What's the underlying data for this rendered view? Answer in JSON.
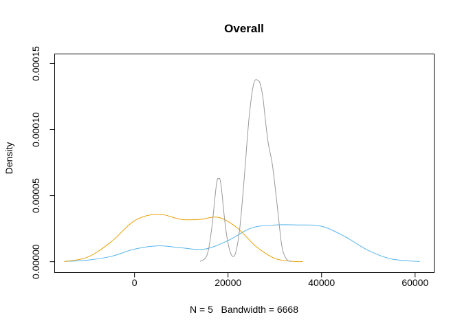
{
  "chart_data": {
    "type": "line",
    "title": "Overall",
    "xlabel": "N = 5   Bandwidth = 6668",
    "ylabel": "Density",
    "xlim": [
      -17000,
      64000
    ],
    "ylim": [
      -8e-06,
      0.000157
    ],
    "x_ticks": [
      0,
      20000,
      40000,
      60000
    ],
    "x_tick_labels": [
      "0",
      "20000",
      "40000",
      "60000"
    ],
    "y_ticks": [
      0,
      5e-05,
      0.0001,
      0.00015
    ],
    "y_tick_labels": [
      "0.00000",
      "0.00005",
      "0.00010",
      "0.00015"
    ],
    "grid": false,
    "series": [
      {
        "color": "#56B4E9",
        "x": [
          -15000,
          -10000,
          -5000,
          0,
          5000,
          10000,
          15000,
          20000,
          25000,
          30000,
          35000,
          40000,
          45000,
          50000,
          55000,
          61000
        ],
        "y": [
          2e-07,
          1.2e-06,
          4e-06,
          9.5e-06,
          1.2e-05,
          1.05e-05,
          9.5e-06,
          1.6e-05,
          2.55e-05,
          2.78e-05,
          2.78e-05,
          2.68e-05,
          1.9e-05,
          8.5e-06,
          2e-06,
          1e-07
        ]
      },
      {
        "color": "#E69F00",
        "x": [
          -15000,
          -10000,
          -5000,
          0,
          5000,
          10000,
          14000,
          18000,
          22000,
          26000,
          30000,
          34000,
          36000
        ],
        "y": [
          1e-07,
          3.5e-06,
          1.5e-05,
          3.1e-05,
          3.6e-05,
          3.2e-05,
          3.2e-05,
          3.35e-05,
          2.55e-05,
          1.15e-05,
          2.5e-06,
          2e-07,
          1e-07
        ]
      },
      {
        "color": "#999999",
        "x": [
          14000,
          15500,
          16500,
          17500,
          18000,
          18500,
          19500,
          20500,
          21500,
          22500,
          23500,
          24500,
          25500,
          26500,
          27000,
          27500,
          28500,
          29500,
          30500,
          31500,
          32500,
          33500
        ],
        "y": [
          2e-07,
          5e-06,
          2.5e-05,
          5.8e-05,
          6.3e-05,
          5.8e-05,
          2.5e-05,
          7e-06,
          5.5e-06,
          2.5e-05,
          6.5e-05,
          0.000109,
          0.000135,
          0.000137,
          0.000133,
          0.000123,
          9.2e-05,
          7.3e-05,
          4.3e-05,
          1.2e-05,
          2e-06,
          1e-07
        ]
      }
    ]
  }
}
